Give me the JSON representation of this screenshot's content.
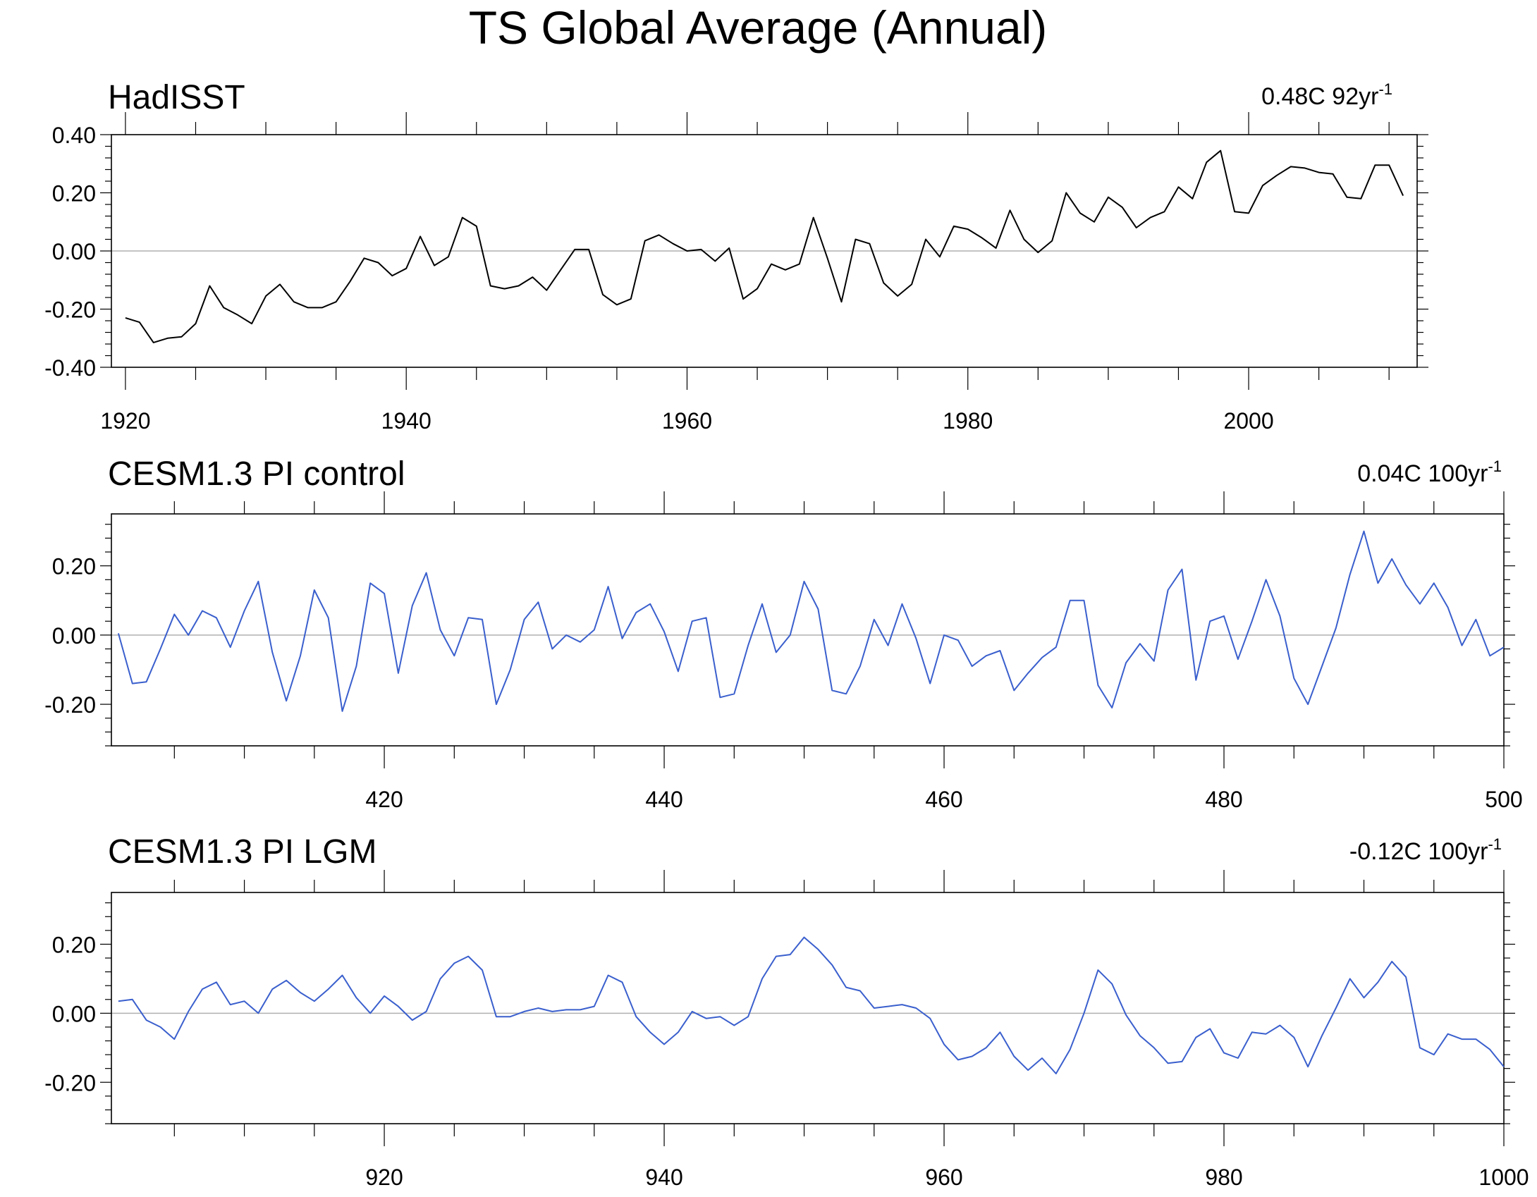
{
  "figure_title": "TS Global Average (Annual)",
  "colors": {
    "observed_line": "#000000",
    "model_line": "#3a5fcd",
    "zero_line": "#b0b0b0",
    "axis": "#000000"
  },
  "chart_data": [
    {
      "type": "line",
      "title": "HadISST",
      "subtitle_main": "0.48C 92yr",
      "subtitle_sup": "-1",
      "xlabel": "",
      "ylabel": "",
      "xlim": [
        1919,
        2012
      ],
      "ylim": [
        -0.4,
        0.4
      ],
      "xticks": [
        1920,
        1940,
        1960,
        1980,
        2000
      ],
      "yticks": [
        -0.4,
        -0.2,
        0.0,
        0.2,
        0.4
      ],
      "ytick_labels": [
        "-0.40",
        "-0.20",
        "0.00",
        "0.20",
        "0.40"
      ],
      "zero_line": true,
      "series": [
        {
          "x_start": 1920,
          "values": [
            -0.23,
            -0.245,
            -0.315,
            -0.3,
            -0.295,
            -0.25,
            -0.12,
            -0.195,
            -0.22,
            -0.25,
            -0.155,
            -0.115,
            -0.175,
            -0.195,
            -0.195,
            -0.175,
            -0.105,
            -0.025,
            -0.04,
            -0.085,
            -0.06,
            0.05,
            -0.05,
            -0.02,
            0.115,
            0.085,
            -0.12,
            -0.13,
            -0.12,
            -0.09,
            -0.135,
            -0.065,
            0.005,
            0.005,
            -0.15,
            -0.185,
            -0.165,
            0.035,
            0.055,
            0.025,
            0.0,
            0.005,
            -0.035,
            0.01,
            -0.165,
            -0.13,
            -0.045,
            -0.065,
            -0.045,
            0.115,
            -0.025,
            -0.175,
            0.04,
            0.025,
            -0.11,
            -0.155,
            -0.115,
            0.04,
            -0.02,
            0.085,
            0.075,
            0.045,
            0.01,
            0.14,
            0.04,
            -0.005,
            0.035,
            0.2,
            0.13,
            0.1,
            0.185,
            0.15,
            0.08,
            0.115,
            0.135,
            0.22,
            0.18,
            0.305,
            0.345,
            0.135,
            0.13,
            0.225,
            0.26,
            0.29,
            0.285,
            0.27,
            0.265,
            0.185,
            0.18,
            0.295,
            0.295,
            0.19
          ]
        }
      ]
    },
    {
      "type": "line",
      "title": "CESM1.3 PI control",
      "subtitle_main": "0.04C 100yr",
      "subtitle_sup": "-1",
      "xlabel": "",
      "ylabel": "",
      "xlim": [
        400.5,
        500
      ],
      "ylim": [
        -0.32,
        0.35
      ],
      "xticks": [
        420,
        440,
        460,
        480,
        500
      ],
      "yticks": [
        -0.2,
        0.0,
        0.2
      ],
      "ytick_labels": [
        "-0.20",
        "0.00",
        "0.20"
      ],
      "zero_line": true,
      "series": [
        {
          "x_start": 401,
          "values": [
            0.005,
            -0.14,
            -0.135,
            -0.04,
            0.06,
            0.0,
            0.07,
            0.05,
            -0.035,
            0.07,
            0.155,
            -0.05,
            -0.19,
            -0.06,
            0.13,
            0.05,
            -0.22,
            -0.09,
            0.15,
            0.12,
            -0.11,
            0.085,
            0.18,
            0.015,
            -0.06,
            0.05,
            0.045,
            -0.2,
            -0.1,
            0.045,
            0.095,
            -0.04,
            0.0,
            -0.02,
            0.015,
            0.14,
            -0.01,
            0.065,
            0.09,
            0.01,
            -0.105,
            0.04,
            0.05,
            -0.18,
            -0.17,
            -0.03,
            0.09,
            -0.05,
            0.0,
            0.155,
            0.075,
            -0.16,
            -0.17,
            -0.09,
            0.045,
            -0.03,
            0.09,
            -0.01,
            -0.14,
            0.0,
            -0.015,
            -0.09,
            -0.06,
            -0.045,
            -0.16,
            -0.11,
            -0.065,
            -0.035,
            0.1,
            0.1,
            -0.145,
            -0.21,
            -0.08,
            -0.025,
            -0.075,
            0.13,
            0.19,
            -0.13,
            0.04,
            0.055,
            -0.07,
            0.04,
            0.16,
            0.055,
            -0.125,
            -0.2,
            -0.09,
            0.02,
            0.175,
            0.3,
            0.15,
            0.22,
            0.145,
            0.09,
            0.15,
            0.08,
            -0.03,
            0.045,
            -0.06,
            -0.035
          ]
        }
      ]
    },
    {
      "type": "line",
      "title": "CESM1.3 PI LGM",
      "subtitle_main": "-0.12C 100yr",
      "subtitle_sup": "-1",
      "xlabel": "",
      "ylabel": "",
      "xlim": [
        900.5,
        1000
      ],
      "ylim": [
        -0.32,
        0.35
      ],
      "xticks": [
        920,
        940,
        960,
        980,
        1000
      ],
      "yticks": [
        -0.2,
        0.0,
        0.2
      ],
      "ytick_labels": [
        "-0.20",
        "0.00",
        "0.20"
      ],
      "zero_line": true,
      "series": [
        {
          "x_start": 901,
          "values": [
            0.035,
            0.04,
            -0.02,
            -0.04,
            -0.075,
            0.005,
            0.07,
            0.09,
            0.025,
            0.035,
            0.0,
            0.07,
            0.095,
            0.06,
            0.035,
            0.07,
            0.11,
            0.045,
            0.0,
            0.05,
            0.02,
            -0.02,
            0.005,
            0.1,
            0.145,
            0.165,
            0.125,
            -0.01,
            -0.01,
            0.005,
            0.015,
            0.005,
            0.01,
            0.01,
            0.02,
            0.11,
            0.09,
            -0.01,
            -0.055,
            -0.09,
            -0.055,
            0.005,
            -0.015,
            -0.01,
            -0.035,
            -0.01,
            0.1,
            0.165,
            0.17,
            0.22,
            0.185,
            0.14,
            0.075,
            0.065,
            0.015,
            0.02,
            0.025,
            0.015,
            -0.015,
            -0.09,
            -0.135,
            -0.125,
            -0.1,
            -0.055,
            -0.125,
            -0.165,
            -0.13,
            -0.175,
            -0.105,
            0.0,
            0.125,
            0.085,
            -0.005,
            -0.065,
            -0.1,
            -0.145,
            -0.14,
            -0.07,
            -0.045,
            -0.115,
            -0.13,
            -0.055,
            -0.06,
            -0.035,
            -0.07,
            -0.155,
            -0.065,
            0.015,
            0.1,
            0.045,
            0.09,
            0.15,
            0.105,
            -0.1,
            -0.12,
            -0.06,
            -0.075,
            -0.075,
            -0.105,
            -0.155
          ]
        }
      ]
    }
  ]
}
